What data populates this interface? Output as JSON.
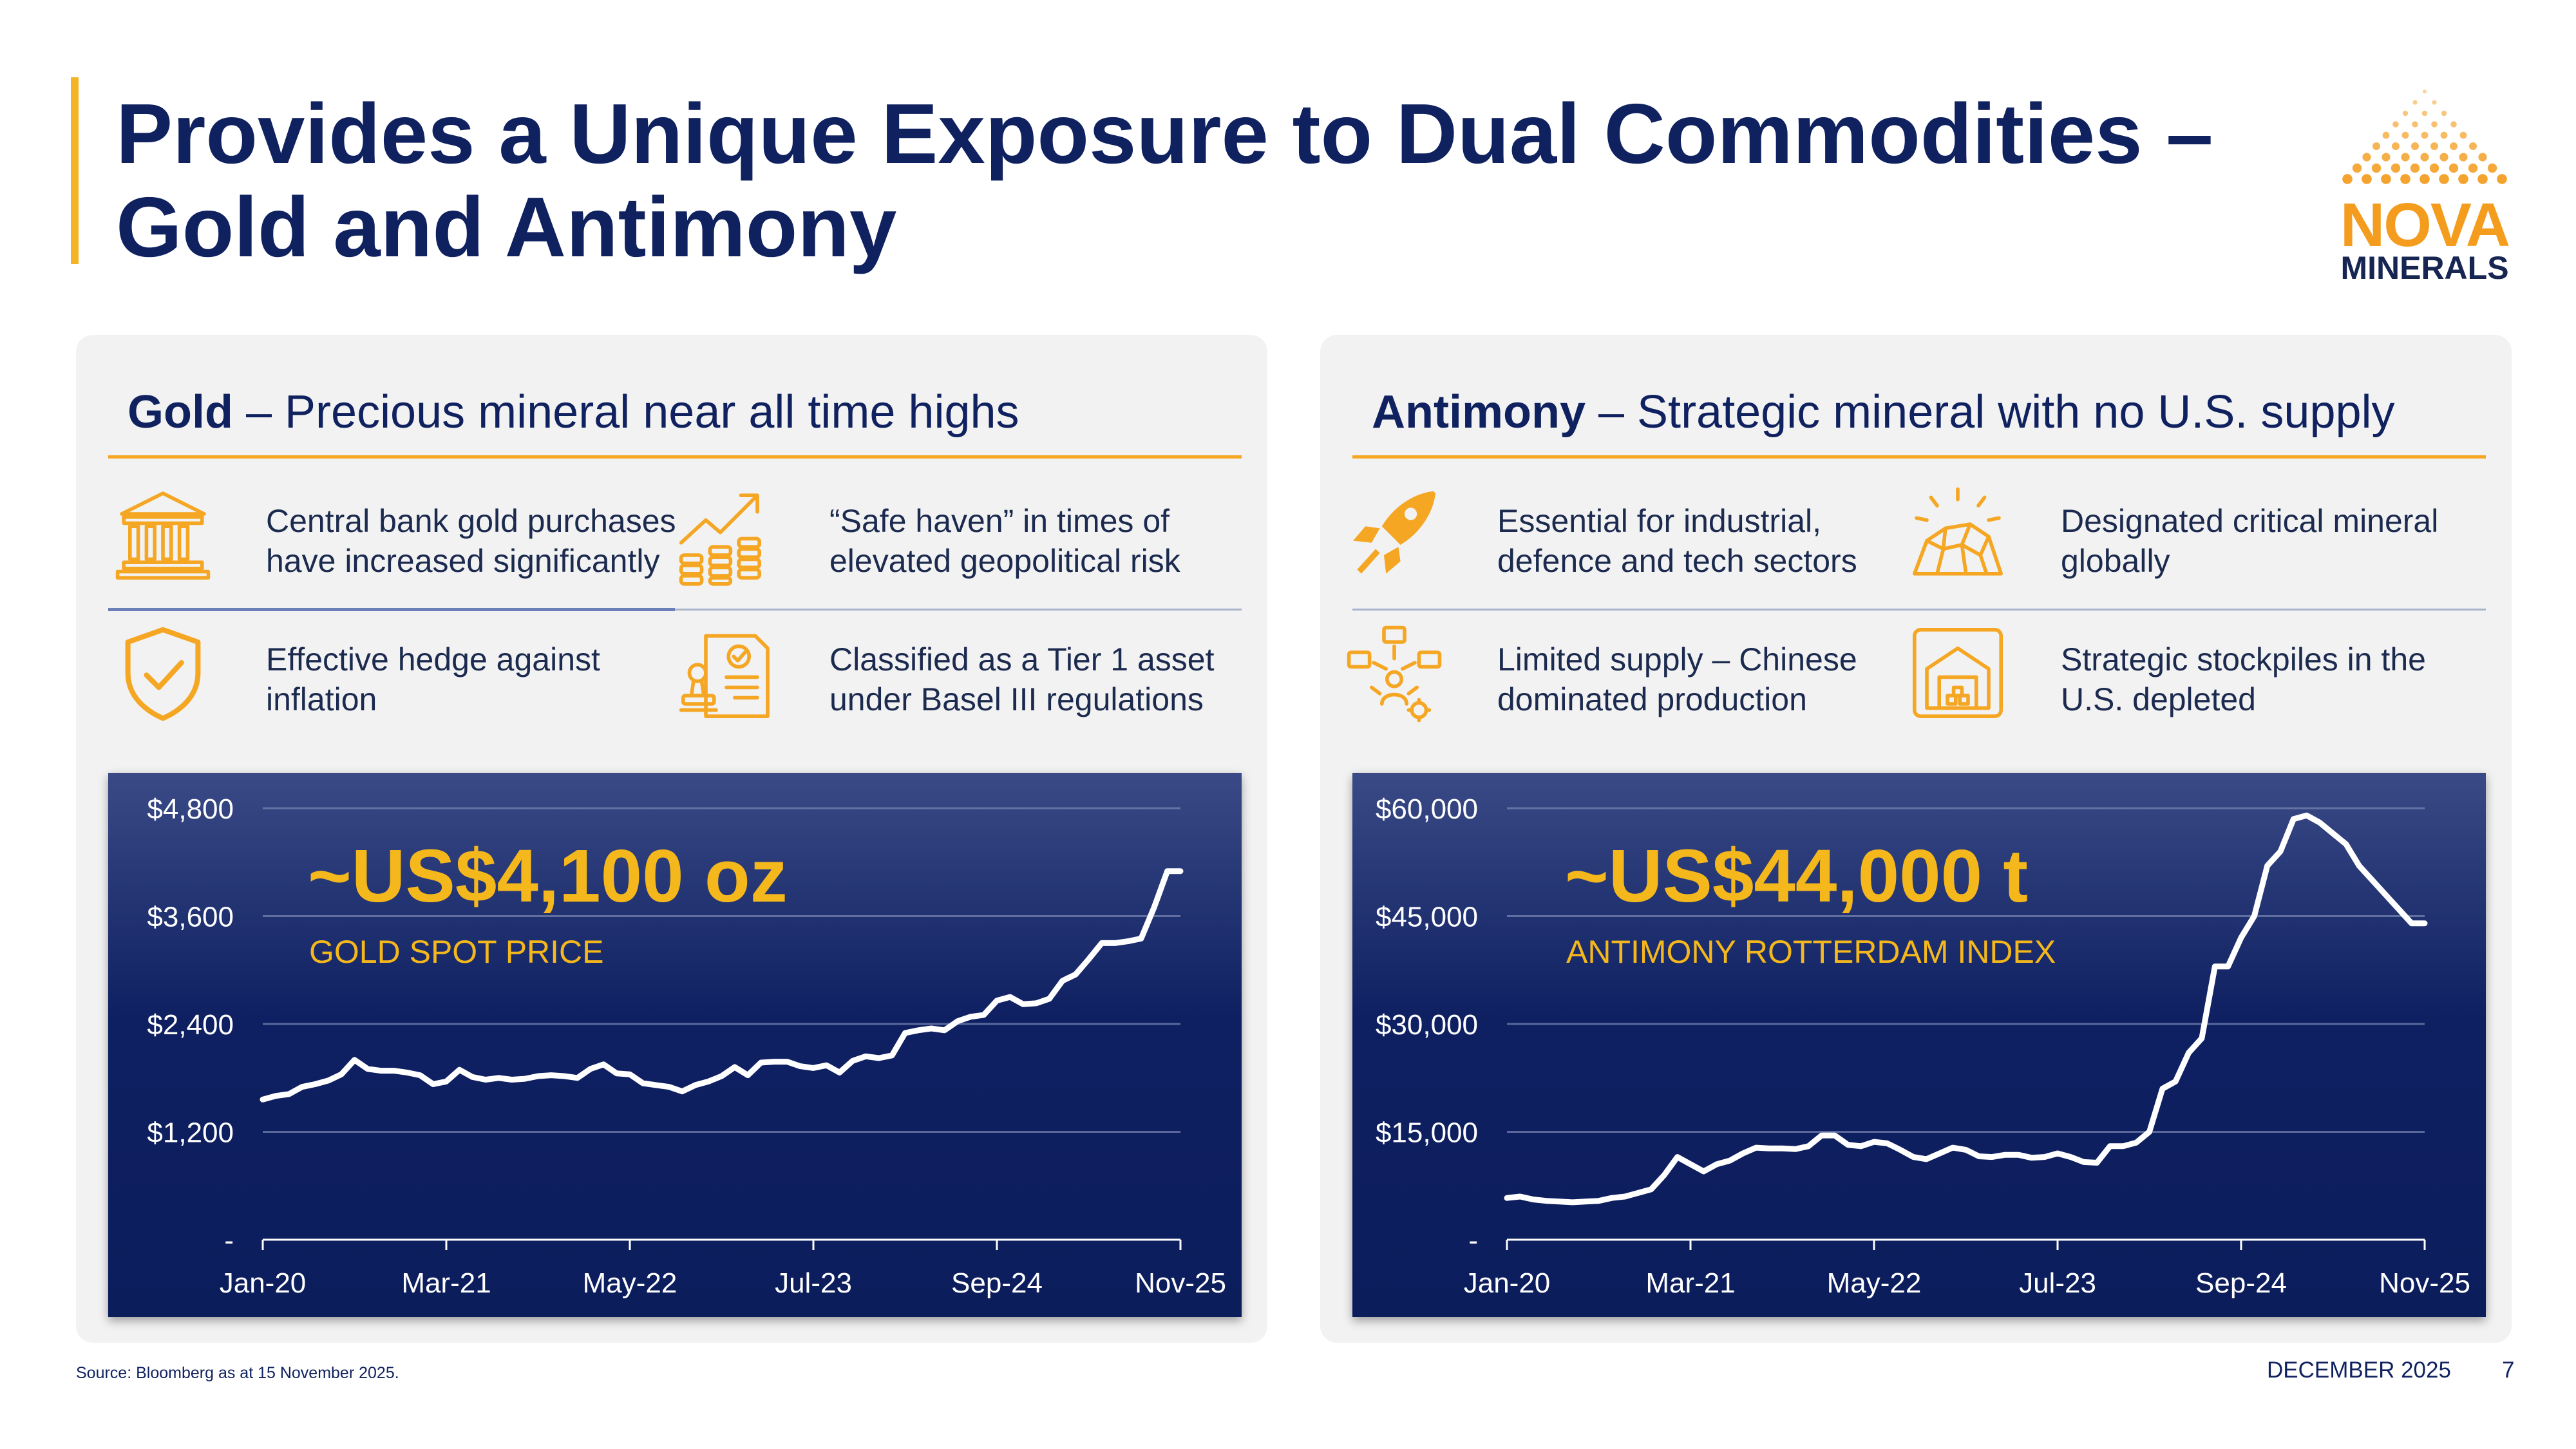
{
  "title": "Provides a Unique Exposure to Dual Commodities – Gold and Antimony",
  "logo": {
    "line1": "NOVA",
    "line2": "MINERALS",
    "brand_color": "#f39c1e"
  },
  "colors": {
    "navy": "#10215f",
    "accent": "#f5a623",
    "price": "#f5b81c"
  },
  "gold": {
    "heading_bold": "Gold",
    "heading_rest": " – Precious mineral near all time highs",
    "features": [
      {
        "icon": "bank-icon",
        "text": "Central bank gold purchases have increased significantly"
      },
      {
        "icon": "growth-chart-coins-icon",
        "text": "“Safe haven” in times of elevated geopolitical risk"
      },
      {
        "icon": "shield-check-icon",
        "text": "Effective hedge against inflation"
      },
      {
        "icon": "certificate-stamp-icon",
        "text": "Classified as a Tier 1 asset under Basel III regulations"
      }
    ],
    "price": "~US$4,100 oz",
    "price_label": "GOLD SPOT PRICE"
  },
  "antimony": {
    "heading_bold": "Antimony",
    "heading_rest": " – Strategic mineral with no U.S. supply",
    "features": [
      {
        "icon": "rocket-icon",
        "text": "Essential for industrial, defence and tech sectors"
      },
      {
        "icon": "mineral-rock-icon",
        "text": "Designated critical mineral globally"
      },
      {
        "icon": "supply-network-icon",
        "text": "Limited supply – Chinese dominated production"
      },
      {
        "icon": "warehouse-stockpile-icon",
        "text": "Strategic stockpiles in the U.S. depleted"
      }
    ],
    "price": "~US$44,000 t",
    "price_label": "ANTIMONY ROTTERDAM INDEX"
  },
  "chart_data": [
    {
      "type": "line",
      "title": "GOLD SPOT PRICE",
      "x_tick_labels": [
        "Jan-20",
        "Mar-21",
        "May-22",
        "Jul-23",
        "Sep-24",
        "Nov-25"
      ],
      "y_tick_labels": [
        "-",
        "$1,200",
        "$2,400",
        "$3,600",
        "$4,800"
      ],
      "ylim": [
        0,
        4800
      ],
      "x_range_months": [
        0,
        70
      ],
      "series": [
        {
          "name": "Gold spot price (US$/oz)",
          "x": [
            0,
            1,
            2,
            3,
            4,
            5,
            6,
            7,
            8,
            9,
            10,
            11,
            12,
            13,
            14,
            15,
            16,
            17,
            18,
            19,
            20,
            21,
            22,
            23,
            24,
            25,
            26,
            27,
            28,
            29,
            30,
            31,
            32,
            33,
            34,
            35,
            36,
            37,
            38,
            39,
            40,
            41,
            42,
            43,
            44,
            45,
            46,
            47,
            48,
            49,
            50,
            51,
            52,
            53,
            54,
            55,
            56,
            57,
            58,
            59,
            60,
            61,
            62,
            63,
            64,
            65,
            66,
            67,
            68,
            69,
            70
          ],
          "values": [
            1560,
            1600,
            1620,
            1700,
            1730,
            1770,
            1840,
            2000,
            1900,
            1880,
            1880,
            1860,
            1830,
            1730,
            1760,
            1890,
            1810,
            1780,
            1800,
            1780,
            1790,
            1820,
            1830,
            1820,
            1800,
            1900,
            1950,
            1850,
            1840,
            1740,
            1720,
            1700,
            1650,
            1720,
            1760,
            1820,
            1920,
            1830,
            1970,
            1980,
            1980,
            1930,
            1910,
            1940,
            1860,
            1990,
            2040,
            2020,
            2050,
            2300,
            2330,
            2350,
            2330,
            2430,
            2480,
            2500,
            2660,
            2700,
            2620,
            2630,
            2680,
            2880,
            2950,
            3120,
            3300,
            3300,
            3320,
            3350,
            3700,
            4100,
            4100
          ]
        }
      ]
    },
    {
      "type": "line",
      "title": "ANTIMONY ROTTERDAM INDEX",
      "x_tick_labels": [
        "Jan-20",
        "Mar-21",
        "May-22",
        "Jul-23",
        "Sep-24",
        "Nov-25"
      ],
      "y_tick_labels": [
        "-",
        "$15,000",
        "$30,000",
        "$45,000",
        "$60,000"
      ],
      "ylim": [
        0,
        60000
      ],
      "x_range_months": [
        0,
        70
      ],
      "series": [
        {
          "name": "Antimony Rotterdam price (US$/t)",
          "x": [
            0,
            1,
            2,
            3,
            4,
            5,
            6,
            7,
            8,
            9,
            10,
            11,
            12,
            13,
            14,
            15,
            16,
            17,
            18,
            19,
            20,
            21,
            22,
            23,
            24,
            25,
            26,
            27,
            28,
            29,
            30,
            31,
            32,
            33,
            34,
            35,
            36,
            37,
            38,
            39,
            40,
            41,
            42,
            43,
            44,
            45,
            46,
            47,
            48,
            49,
            50,
            51,
            52,
            53,
            54,
            55,
            56,
            57,
            58,
            59,
            60,
            61,
            62,
            63,
            64,
            65,
            66,
            67,
            68,
            69,
            70
          ],
          "values": [
            5800,
            6000,
            5600,
            5400,
            5300,
            5200,
            5300,
            5400,
            5800,
            6000,
            6500,
            7000,
            9000,
            11500,
            10500,
            9500,
            10500,
            11000,
            12000,
            12800,
            12700,
            12700,
            12600,
            13000,
            14500,
            14500,
            13200,
            13000,
            13600,
            13400,
            12500,
            11500,
            11200,
            12000,
            12800,
            12500,
            11600,
            11500,
            11800,
            11800,
            11400,
            11500,
            12000,
            11500,
            10800,
            10700,
            13000,
            13000,
            13500,
            15000,
            21000,
            22000,
            26000,
            28000,
            38000,
            38000,
            42000,
            45000,
            52000,
            54000,
            58500,
            59000,
            58000,
            56500,
            55000,
            52000,
            50000,
            48000,
            46000,
            44000,
            44000
          ]
        }
      ]
    }
  ],
  "footer": {
    "source": "Source: Bloomberg as at 15 November 2025.",
    "date": "DECEMBER 2025",
    "page": "7"
  }
}
